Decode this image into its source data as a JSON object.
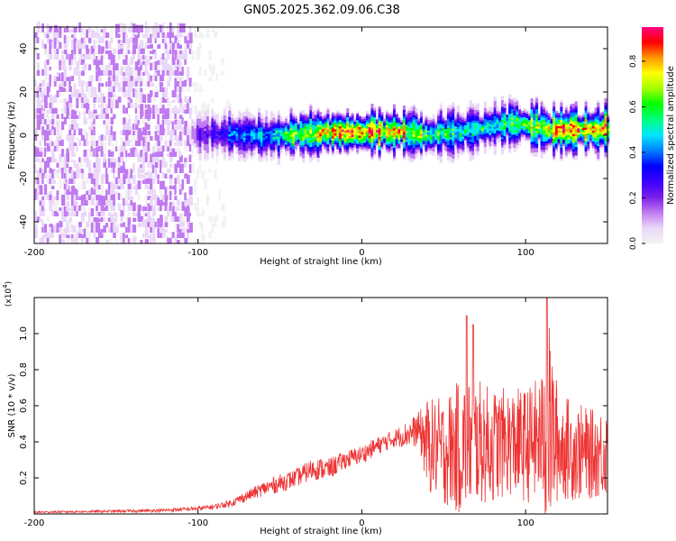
{
  "title": "GN05.2025.362.09.06.C38",
  "chart_data": [
    {
      "type": "heatmap",
      "xlabel": "Height of straight line (km)",
      "ylabel": "Frequency (Hz)",
      "xlim": [
        -200,
        150
      ],
      "ylim": [
        -50,
        50
      ],
      "xticks": [
        "-200",
        "-100",
        "0",
        "100"
      ],
      "xtick_values": [
        -200,
        -100,
        0,
        100
      ],
      "yticks": [
        "-40",
        "-20",
        "0",
        "20",
        "40"
      ],
      "ytick_values": [
        -40,
        -20,
        0,
        20,
        40
      ],
      "colorbar": {
        "label": "Normalized spectral amplitude",
        "range": [
          0,
          0.95
        ],
        "ticks": [
          "0.0",
          "0.2",
          "0.4",
          "0.6",
          "0.8"
        ],
        "tick_values": [
          0.0,
          0.2,
          0.4,
          0.6,
          0.8
        ],
        "colormap": [
          "#f2f2f2",
          "#ead8f8",
          "#c07af0",
          "#7a1fe8",
          "#3a00ff",
          "#0000ff",
          "#0080ff",
          "#00e5ff",
          "#00ff80",
          "#00ff00",
          "#a0ff00",
          "#ffff00",
          "#ff9900",
          "#ff0000",
          "#ff0080"
        ]
      },
      "noise_region": {
        "x_range": [
          -200,
          -105
        ],
        "freq_range": [
          -50,
          50
        ]
      },
      "ridge": [
        {
          "x": -105,
          "freq": 0,
          "amp": 0.2
        },
        {
          "x": -80,
          "freq": 0,
          "amp": 0.4
        },
        {
          "x": -60,
          "freq": -1,
          "amp": 0.5
        },
        {
          "x": -40,
          "freq": 0,
          "amp": 0.7
        },
        {
          "x": -20,
          "freq": 1,
          "amp": 0.85
        },
        {
          "x": 0,
          "freq": 1,
          "amp": 0.9
        },
        {
          "x": 20,
          "freq": 1,
          "amp": 0.85
        },
        {
          "x": 40,
          "freq": 0,
          "amp": 0.6
        },
        {
          "x": 60,
          "freq": 1,
          "amp": 0.55
        },
        {
          "x": 80,
          "freq": 4,
          "amp": 0.6
        },
        {
          "x": 90,
          "freq": 5,
          "amp": 0.65
        },
        {
          "x": 100,
          "freq": 4,
          "amp": 0.7
        },
        {
          "x": 120,
          "freq": 2,
          "amp": 0.85
        },
        {
          "x": 150,
          "freq": 2,
          "amp": 0.85
        }
      ]
    },
    {
      "type": "line",
      "color": "#ee3333",
      "xlabel": "Height of straight line (km)",
      "ylabel": "SNR (10 * v/v)",
      "y_multiplier": "(x10",
      "y_multiplier_exp": "4",
      "y_multiplier_close": ")",
      "xlim": [
        -200,
        150
      ],
      "ylim": [
        0,
        1.2
      ],
      "xticks": [
        "-200",
        "-100",
        "0",
        "100"
      ],
      "xtick_values": [
        -200,
        -100,
        0,
        100
      ],
      "yticks": [
        "0.2",
        "0.4",
        "0.6",
        "0.8",
        "1.0"
      ],
      "ytick_values": [
        0.2,
        0.4,
        0.6,
        0.8,
        1.0
      ],
      "series": [
        {
          "name": "SNR",
          "x": [
            -200,
            -150,
            -120,
            -100,
            -90,
            -80,
            -70,
            -60,
            -50,
            -40,
            -30,
            -20,
            -10,
            0,
            10,
            20,
            30,
            35,
            40,
            50,
            60,
            70,
            80,
            90,
            100,
            110,
            113,
            120,
            130,
            140,
            150
          ],
          "center": [
            0.01,
            0.015,
            0.02,
            0.03,
            0.04,
            0.06,
            0.1,
            0.14,
            0.17,
            0.2,
            0.25,
            0.25,
            0.3,
            0.33,
            0.38,
            0.42,
            0.45,
            0.47,
            0.38,
            0.35,
            0.37,
            0.4,
            0.38,
            0.4,
            0.38,
            0.42,
            0.5,
            0.38,
            0.35,
            0.33,
            0.35
          ],
          "amplitude": [
            0.005,
            0.007,
            0.01,
            0.012,
            0.015,
            0.02,
            0.03,
            0.04,
            0.05,
            0.05,
            0.06,
            0.06,
            0.05,
            0.05,
            0.05,
            0.05,
            0.08,
            0.1,
            0.26,
            0.3,
            0.38,
            0.35,
            0.32,
            0.3,
            0.32,
            0.36,
            0.65,
            0.3,
            0.28,
            0.25,
            0.25
          ],
          "peaks": [
            {
              "x": 64,
              "y": 1.1
            },
            {
              "x": 68,
              "y": 1.05
            },
            {
              "x": 113,
              "y": 1.2
            }
          ]
        }
      ]
    }
  ]
}
